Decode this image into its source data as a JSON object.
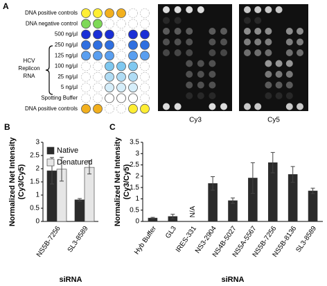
{
  "panel_a": {
    "label": "A",
    "row_labels": [
      "DNA positive controls",
      "DNA negative control",
      "500 ng/µl",
      "250 ng/µl",
      "125 ng/µl",
      "100 ng/µl",
      "25 ng/µl",
      "5 ng/µl",
      "Spotting Buffer",
      "DNA positive controls"
    ],
    "group_label": [
      "HCV",
      "Replicon",
      "RNA"
    ],
    "image_labels": [
      "Cy3",
      "Cy5"
    ]
  },
  "chart_data": [
    {
      "type": "bar",
      "panel_label": "B",
      "ylabel": [
        "Normalized Net Intensity",
        "(Cy3/Cy5)"
      ],
      "xlabel": "siRNA",
      "categories": [
        "NS5B-7256",
        "SL3-8589"
      ],
      "series": [
        {
          "name": "Native",
          "color": "#2b2b2b",
          "values": [
            1.92,
            0.82
          ],
          "errors": [
            0.5,
            0.05
          ]
        },
        {
          "name": "Denatured",
          "color": "#e6e6e6",
          "values": [
            1.98,
            2.05
          ],
          "errors": [
            0.45,
            0.25
          ]
        }
      ],
      "ylim": [
        0,
        3
      ],
      "yticks": [
        0,
        0.5,
        1,
        1.5,
        2,
        2.5,
        3
      ],
      "legend": "top-left"
    },
    {
      "type": "bar",
      "panel_label": "C",
      "ylabel": [
        "Normalized Net Intensity",
        "(Cy3/Cy5)"
      ],
      "xlabel": "siRNA",
      "categories": [
        "Hyb Buffer",
        "GL3",
        "IRES-331",
        "NS3-2904",
        "NS4B-5027",
        "NS5A-5567",
        "NS5B-7256",
        "NS5B-8136",
        "SL3-8589"
      ],
      "values": [
        0.15,
        0.22,
        null,
        1.68,
        0.92,
        1.92,
        2.6,
        2.08,
        1.35
      ],
      "errors": [
        0.03,
        0.1,
        null,
        0.3,
        0.12,
        0.68,
        0.45,
        0.35,
        0.12
      ],
      "value_labels": [
        null,
        null,
        "N/A",
        null,
        null,
        null,
        null,
        null,
        null
      ],
      "color": "#2b2b2b",
      "ylim": [
        0,
        3.5
      ],
      "yticks": [
        0,
        0.5,
        1,
        1.5,
        2,
        2.5,
        3,
        3.5
      ]
    }
  ]
}
